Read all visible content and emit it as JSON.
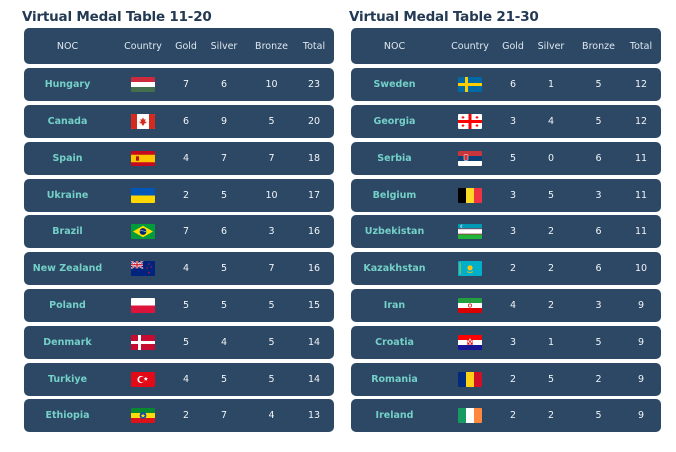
{
  "tables": [
    {
      "title": "Virtual Medal Table 11-20",
      "headers": {
        "noc": "NOC",
        "country": "Country",
        "gold": "Gold",
        "silver": "Silver",
        "bronze": "Bronze",
        "total": "Total"
      },
      "rows": [
        {
          "noc": "Hungary",
          "flag": "flag-hungary-icon",
          "gold": "7",
          "silver": "6",
          "bronze": "10",
          "total": "23"
        },
        {
          "noc": "Canada",
          "flag": "flag-canada-icon",
          "gold": "6",
          "silver": "9",
          "bronze": "5",
          "total": "20"
        },
        {
          "noc": "Spain",
          "flag": "flag-spain-icon",
          "gold": "4",
          "silver": "7",
          "bronze": "7",
          "total": "18"
        },
        {
          "noc": "Ukraine",
          "flag": "flag-ukraine-icon",
          "gold": "2",
          "silver": "5",
          "bronze": "10",
          "total": "17"
        },
        {
          "noc": "Brazil",
          "flag": "flag-brazil-icon",
          "gold": "7",
          "silver": "6",
          "bronze": "3",
          "total": "16"
        },
        {
          "noc": "New Zealand",
          "flag": "flag-new-zealand-icon",
          "gold": "4",
          "silver": "5",
          "bronze": "7",
          "total": "16"
        },
        {
          "noc": "Poland",
          "flag": "flag-poland-icon",
          "gold": "5",
          "silver": "5",
          "bronze": "5",
          "total": "15"
        },
        {
          "noc": "Denmark",
          "flag": "flag-denmark-icon",
          "gold": "5",
          "silver": "4",
          "bronze": "5",
          "total": "14"
        },
        {
          "noc": "Turkiye",
          "flag": "flag-turkiye-icon",
          "gold": "4",
          "silver": "5",
          "bronze": "5",
          "total": "14"
        },
        {
          "noc": "Ethiopia",
          "flag": "flag-ethiopia-icon",
          "gold": "2",
          "silver": "7",
          "bronze": "4",
          "total": "13"
        }
      ]
    },
    {
      "title": "Virtual Medal Table 21-30",
      "headers": {
        "noc": "NOC",
        "country": "Country",
        "gold": "Gold",
        "silver": "Silver",
        "bronze": "Bronze",
        "total": "Total"
      },
      "rows": [
        {
          "noc": "Sweden",
          "flag": "flag-sweden-icon",
          "gold": "6",
          "silver": "1",
          "bronze": "5",
          "total": "12"
        },
        {
          "noc": "Georgia",
          "flag": "flag-georgia-icon",
          "gold": "3",
          "silver": "4",
          "bronze": "5",
          "total": "12"
        },
        {
          "noc": "Serbia",
          "flag": "flag-serbia-icon",
          "gold": "5",
          "silver": "0",
          "bronze": "6",
          "total": "11"
        },
        {
          "noc": "Belgium",
          "flag": "flag-belgium-icon",
          "gold": "3",
          "silver": "5",
          "bronze": "3",
          "total": "11"
        },
        {
          "noc": "Uzbekistan",
          "flag": "flag-uzbekistan-icon",
          "gold": "3",
          "silver": "2",
          "bronze": "6",
          "total": "11"
        },
        {
          "noc": "Kazakhstan",
          "flag": "flag-kazakhstan-icon",
          "gold": "2",
          "silver": "2",
          "bronze": "6",
          "total": "10"
        },
        {
          "noc": "Iran",
          "flag": "flag-iran-icon",
          "gold": "4",
          "silver": "2",
          "bronze": "3",
          "total": "9"
        },
        {
          "noc": "Croatia",
          "flag": "flag-croatia-icon",
          "gold": "3",
          "silver": "1",
          "bronze": "5",
          "total": "9"
        },
        {
          "noc": "Romania",
          "flag": "flag-romania-icon",
          "gold": "2",
          "silver": "5",
          "bronze": "2",
          "total": "9"
        },
        {
          "noc": "Ireland",
          "flag": "flag-ireland-icon",
          "gold": "2",
          "silver": "2",
          "bronze": "5",
          "total": "9"
        }
      ]
    }
  ],
  "colors": {
    "row_background": "#2c4864",
    "title_text": "#243a54",
    "noc_text": "#74d0c8",
    "value_text": "#f2f5f8"
  }
}
